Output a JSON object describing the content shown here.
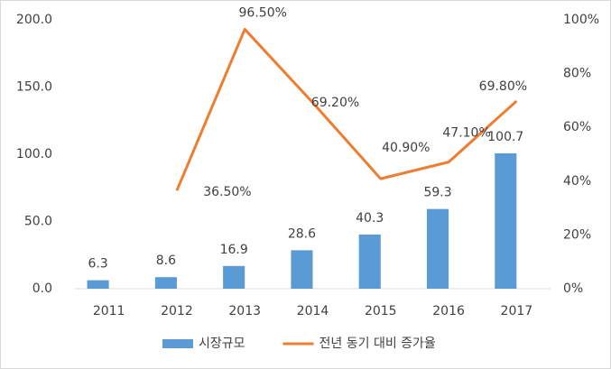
{
  "chart_data": {
    "type": "combo",
    "categories": [
      "2011",
      "2012",
      "2013",
      "2014",
      "2015",
      "2016",
      "2017"
    ],
    "series": [
      {
        "name": "시장규모",
        "type": "bar",
        "color": "#5b9bd5",
        "axis": "y",
        "values": [
          6.3,
          8.6,
          16.9,
          28.6,
          40.3,
          59.3,
          100.7
        ]
      },
      {
        "name": "전년 동기 대비 증가율",
        "type": "line",
        "color": "#ed7d31",
        "axis": "y2",
        "values": [
          null,
          36.5,
          96.5,
          69.2,
          40.9,
          47.1,
          69.8
        ],
        "value_labels": [
          null,
          "36.50%",
          "96.50%",
          "69.20%",
          "40.90%",
          "47.10%",
          "69.80%"
        ]
      }
    ],
    "ylim": [
      0,
      200
    ],
    "yticks": [
      {
        "value": 0,
        "label": "0.0"
      },
      {
        "value": 50,
        "label": "50.0"
      },
      {
        "value": 100,
        "label": "100.0"
      },
      {
        "value": 150,
        "label": "150.0"
      },
      {
        "value": 200,
        "label": "200.0"
      }
    ],
    "y2lim": [
      0,
      100
    ],
    "y2ticks": [
      {
        "value": 0,
        "label": "0%"
      },
      {
        "value": 20,
        "label": "20%"
      },
      {
        "value": 40,
        "label": "40%"
      },
      {
        "value": 60,
        "label": "60%"
      },
      {
        "value": 80,
        "label": "80%"
      },
      {
        "value": 100,
        "label": "100%"
      }
    ],
    "grid": false,
    "legend": "bottom"
  }
}
